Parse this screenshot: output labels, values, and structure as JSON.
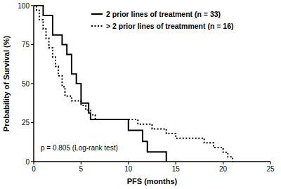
{
  "chart_data": {
    "type": "line",
    "x_label": "PFS (months)",
    "y_label": "Probability of Survival (%)",
    "annotation": "p = 0.805 (Log-rank test)",
    "xlim": [
      0,
      25
    ],
    "ylim": [
      0,
      100
    ],
    "xticks": [
      0,
      5,
      10,
      15,
      20,
      25
    ],
    "yticks": [
      0,
      25,
      50,
      75,
      100
    ],
    "grid": false,
    "legend": "top-right",
    "series": [
      {
        "name": "2 prior lines of treatment (n = 33)",
        "color": "#000000",
        "line_style": "solid",
        "x": [
          0,
          1,
          2,
          3,
          3.5,
          4,
          4.5,
          5,
          5.8,
          6,
          10,
          11.5,
          12,
          14
        ],
        "values": [
          100,
          93.75,
          81.25,
          75,
          68.75,
          56.25,
          50,
          37.5,
          31.25,
          27,
          20,
          13,
          6.25,
          0
        ]
      },
      {
        "name": "> 2 prior lines of treatmment (n = 16)",
        "color": "#000000",
        "line_style": "dotted",
        "x": [
          0,
          0.3,
          0.6,
          1,
          1.3,
          1.6,
          2,
          2.3,
          2.6,
          3,
          3.3,
          4,
          5,
          5.5,
          6,
          6.5,
          11,
          12.5,
          14,
          15,
          18,
          19,
          20,
          20.5,
          21
        ],
        "values": [
          100,
          97,
          91,
          85,
          79,
          73,
          67,
          61,
          55,
          48,
          42,
          39,
          36,
          33,
          30,
          27,
          24,
          21,
          18,
          15,
          12,
          9,
          6,
          3,
          0
        ]
      }
    ]
  }
}
